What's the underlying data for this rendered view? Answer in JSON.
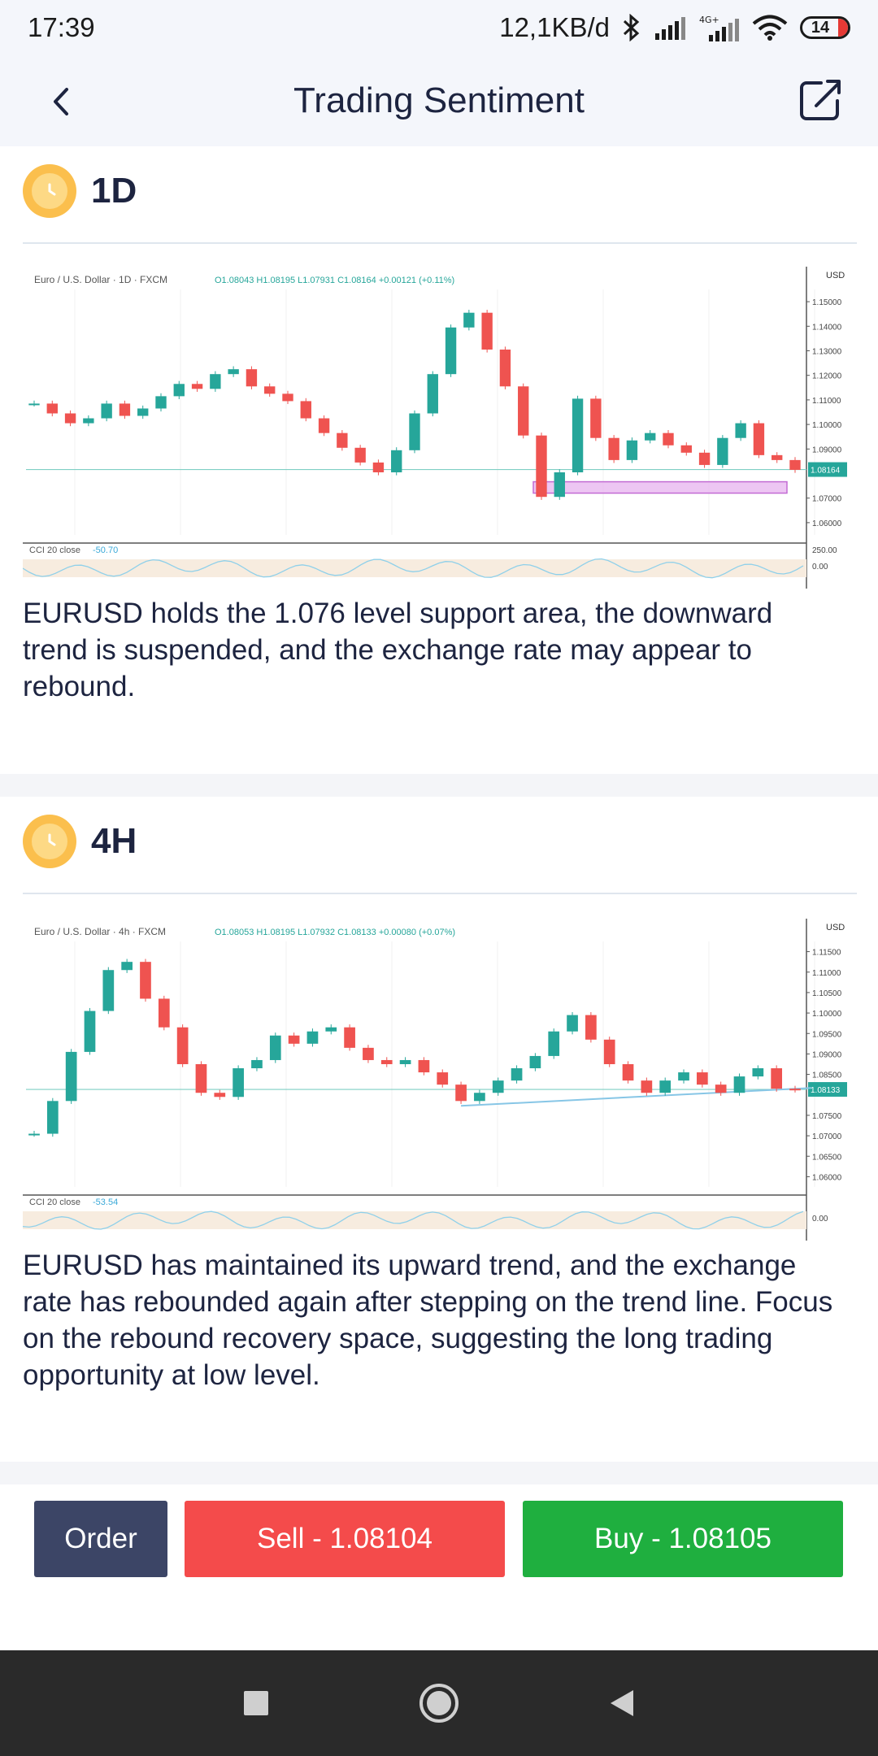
{
  "status_bar": {
    "time": "17:39",
    "network_speed": "12,1KB/d",
    "battery": "14",
    "icons": [
      "bluetooth-icon",
      "signal-icon",
      "signal-4g-icon",
      "wifi-icon",
      "battery-icon"
    ]
  },
  "header": {
    "title": "Trading Sentiment",
    "back_icon": "chevron-left-icon",
    "share_icon": "share-icon"
  },
  "sections": [
    {
      "timeframe": "1D",
      "chart": {
        "legend": "Euro / U.S. Dollar · 1D · FXCM",
        "ohlc": "O1.08043  H1.08195  L1.07931  C1.08164  +0.00121 (+0.11%)",
        "currency": "USD",
        "price_ticks": [
          "1.15000",
          "1.14000",
          "1.13000",
          "1.12000",
          "1.11000",
          "1.10000",
          "1.09000",
          "1.08164",
          "1.07000",
          "1.06000"
        ],
        "current_price": "1.08164",
        "indicator_label": "CCI 20 close",
        "indicator_value": "-50.70",
        "indicator_ticks": [
          "250.00",
          "0.00"
        ],
        "support_level": 1.076
      },
      "analysis": "EURUSD holds the 1.076 level support area, the downward trend is suspended, and the exchange rate may appear to rebound."
    },
    {
      "timeframe": "4H",
      "chart": {
        "legend": "Euro / U.S. Dollar · 4h · FXCM",
        "ohlc": "O1.08053  H1.08195  L1.07932  C1.08133  +0.00080 (+0.07%)",
        "currency": "USD",
        "price_ticks": [
          "1.11500",
          "1.11000",
          "1.10500",
          "1.10000",
          "1.09500",
          "1.09000",
          "1.08500",
          "1.08133",
          "1.07500",
          "1.07000",
          "1.06500",
          "1.06000"
        ],
        "current_price": "1.08133",
        "indicator_label": "CCI 20 close",
        "indicator_value": "-53.54",
        "indicator_ticks": [
          "0.00"
        ]
      },
      "analysis": "EURUSD has maintained its upward trend, and the exchange rate has rebounded again after stepping on the trend line. Focus on the rebound recovery space, suggesting the long trading opportunity at low level."
    }
  ],
  "actions": {
    "order_label": "Order",
    "sell_label": "Sell - 1.08104",
    "buy_label": "Buy - 1.08105",
    "colors": {
      "order": "#3c4566",
      "sell": "#f44b4b",
      "buy": "#1faf3f"
    }
  },
  "nav_bar": {
    "icons": [
      "recents-square-icon",
      "home-circle-icon",
      "back-triangle-icon"
    ]
  },
  "chart_data": [
    {
      "type": "line",
      "title": "Euro / U.S. Dollar · 1D · FXCM",
      "ylim": [
        1.055,
        1.155
      ],
      "series": [
        {
          "values": [
            1.1085,
            1.1045,
            1.1005,
            1.1025,
            1.1085,
            1.1035,
            1.1065,
            1.1115,
            1.1165,
            1.1145,
            1.1205,
            1.1225,
            1.1155,
            1.1125,
            1.1095,
            1.1025,
            1.0965,
            1.0905,
            1.0845,
            1.0805,
            1.0895,
            1.1045,
            1.1205,
            1.1395,
            1.1455,
            1.1305,
            1.1155,
            1.0955,
            1.0705,
            1.0805,
            1.1105,
            1.0945,
            1.0855,
            1.0935,
            1.0965,
            1.0915,
            1.0885,
            1.0835,
            1.0945,
            1.1005,
            1.0875,
            1.0855,
            1.0815
          ]
        }
      ]
    },
    {
      "type": "line",
      "title": "Euro / U.S. Dollar · 4h · FXCM",
      "ylim": [
        1.0575,
        1.1175
      ],
      "series": [
        {
          "values": [
            1.0705,
            1.0785,
            1.0905,
            1.1005,
            1.1105,
            1.1125,
            1.1035,
            1.0965,
            1.0875,
            1.0805,
            1.0795,
            1.0865,
            1.0885,
            1.0945,
            1.0925,
            1.0955,
            1.0965,
            1.0915,
            1.0885,
            1.0875,
            1.0885,
            1.0855,
            1.0825,
            1.0785,
            1.0805,
            1.0835,
            1.0865,
            1.0895,
            1.0955,
            1.0995,
            1.0935,
            1.0875,
            1.0835,
            1.0805,
            1.0835,
            1.0855,
            1.0825,
            1.0805,
            1.0845,
            1.0865,
            1.0815,
            1.0813
          ]
        }
      ]
    }
  ]
}
